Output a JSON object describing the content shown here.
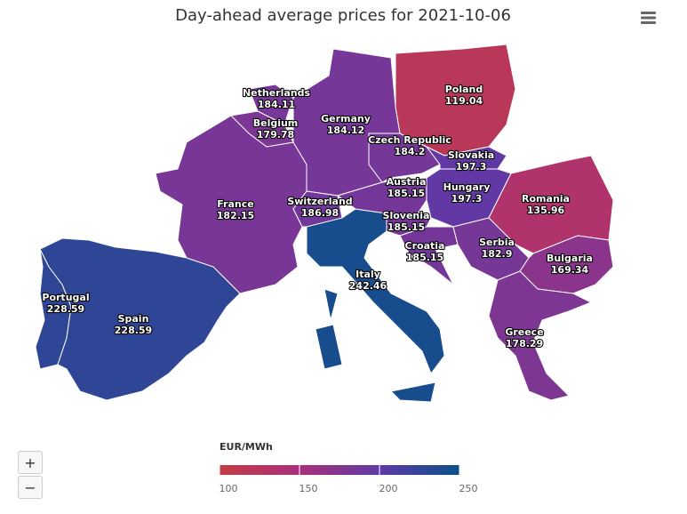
{
  "title": "Day-ahead average prices for 2021-10-06",
  "map": {
    "regions": [
      {
        "name": "Portugal",
        "value": 228.59
      },
      {
        "name": "Spain",
        "value": 228.59
      },
      {
        "name": "France",
        "value": 182.15
      },
      {
        "name": "Belgium",
        "value": 179.78
      },
      {
        "name": "Netherlands",
        "value": 184.11
      },
      {
        "name": "Germany",
        "value": 184.12
      },
      {
        "name": "Switzerland",
        "value": 186.98
      },
      {
        "name": "Italy",
        "value": 242.46
      },
      {
        "name": "Austria",
        "value": 185.15
      },
      {
        "name": "Czech Republic",
        "value": 184.2
      },
      {
        "name": "Poland",
        "value": 119.04
      },
      {
        "name": "Slovakia",
        "value": 197.3
      },
      {
        "name": "Hungary",
        "value": 197.3
      },
      {
        "name": "Romania",
        "value": 135.96
      },
      {
        "name": "Slovenia",
        "value": 185.15
      },
      {
        "name": "Croatia",
        "value": 185.15
      },
      {
        "name": "Serbia",
        "value": 182.9
      },
      {
        "name": "Bulgaria",
        "value": 169.34
      },
      {
        "name": "Greece",
        "value": 178.29
      }
    ],
    "legend": {
      "title": "EUR/MWh",
      "lim": [
        100,
        250
      ],
      "ticks": [
        100,
        150,
        200,
        250
      ],
      "colors": [
        "#c43c44",
        "#a8307a",
        "#5e3aa6",
        "#0a4f89"
      ]
    }
  },
  "controls": {
    "zoom_in": "+",
    "zoom_out": "−"
  }
}
